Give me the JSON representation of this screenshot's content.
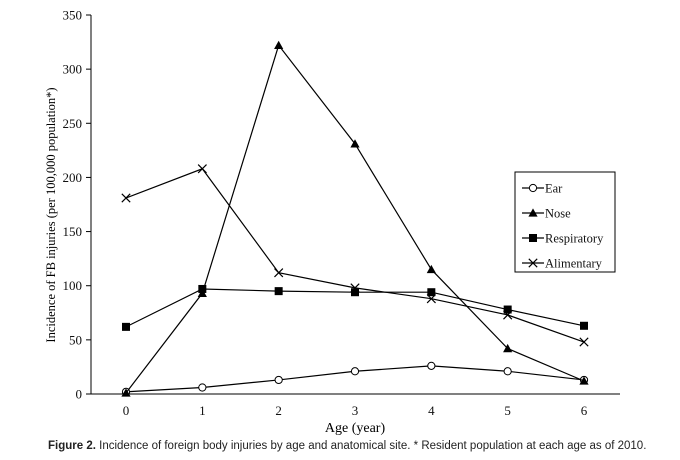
{
  "chart_data": {
    "type": "line",
    "xlabel": "Age (year)",
    "ylabel": "Incidence of FB injuries (per 100,000 population*)",
    "x": [
      0,
      1,
      2,
      3,
      4,
      5,
      6
    ],
    "xlim": [
      0,
      6
    ],
    "ylim": [
      0,
      350
    ],
    "y_ticks": [
      0,
      50,
      100,
      150,
      200,
      250,
      300,
      350
    ],
    "grid": false,
    "legend_position": "right",
    "series": [
      {
        "name": "Ear",
        "marker": "open-circle",
        "values": [
          2,
          6,
          13,
          21,
          26,
          21,
          13
        ]
      },
      {
        "name": "Nose",
        "marker": "filled-triangle",
        "values": [
          1,
          93,
          322,
          231,
          115,
          42,
          12
        ]
      },
      {
        "name": "Respiratory",
        "marker": "filled-square",
        "values": [
          62,
          97,
          95,
          94,
          94,
          78,
          63
        ]
      },
      {
        "name": "Alimentary",
        "marker": "x",
        "values": [
          181,
          208,
          112,
          98,
          88,
          73,
          48
        ]
      }
    ]
  },
  "caption": {
    "label": "Figure 2.",
    "text": "Incidence of foreign body injuries by age and anatomical site. * Resident population at each age as of 2010."
  },
  "colors": {
    "line": "#000000",
    "text": "#222222"
  }
}
